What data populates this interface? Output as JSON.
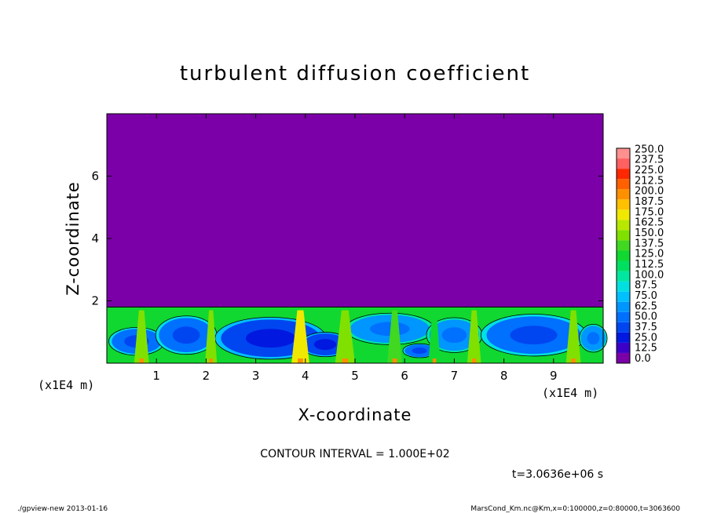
{
  "chart_data": {
    "type": "heatmap",
    "title": "turbulent diffusion coefficient",
    "xlabel": "X-coordinate",
    "ylabel": "Z-coordinate",
    "x_unit": "(x1E4 m)",
    "y_unit": "(x1E4 m)",
    "xlim": [
      0,
      10
    ],
    "ylim": [
      0,
      8
    ],
    "x_ticks": [
      "1",
      "2",
      "3",
      "4",
      "5",
      "6",
      "7",
      "8",
      "9"
    ],
    "y_ticks": [
      "2",
      "4",
      "6"
    ],
    "colorbar": {
      "levels": [
        "0.0",
        "12.5",
        "25.0",
        "37.5",
        "50.0",
        "62.5",
        "75.0",
        "87.5",
        "100.0",
        "112.5",
        "125.0",
        "137.5",
        "150.0",
        "162.5",
        "175.0",
        "187.5",
        "200.0",
        "212.5",
        "225.0",
        "237.5",
        "250.0"
      ],
      "colors": [
        "#7b00a8",
        "#3c00c8",
        "#0018e0",
        "#0046f0",
        "#0070ff",
        "#0096ff",
        "#00c0ff",
        "#00e0e0",
        "#00e8a0",
        "#00e060",
        "#10d830",
        "#40d820",
        "#80e000",
        "#b8e800",
        "#f0e800",
        "#ffc000",
        "#ff9000",
        "#ff6000",
        "#ff2800",
        "#ff6060",
        "#ff9090"
      ]
    },
    "field": {
      "background_value": 0.0,
      "boundary_layer_top": 1.8,
      "cells": [
        {
          "x": 0.6,
          "z": 0.7,
          "rx": 0.5,
          "rz": 0.4,
          "level": 4
        },
        {
          "x": 1.6,
          "z": 0.9,
          "rx": 0.55,
          "rz": 0.55,
          "level": 4
        },
        {
          "x": 3.3,
          "z": 0.8,
          "rx": 1.0,
          "rz": 0.6,
          "level": 3
        },
        {
          "x": 4.4,
          "z": 0.6,
          "rx": 0.45,
          "rz": 0.35,
          "level": 3
        },
        {
          "x": 5.7,
          "z": 1.1,
          "rx": 0.8,
          "rz": 0.45,
          "level": 5
        },
        {
          "x": 6.3,
          "z": 0.4,
          "rx": 0.3,
          "rz": 0.2,
          "level": 4
        },
        {
          "x": 7.0,
          "z": 0.9,
          "rx": 0.5,
          "rz": 0.5,
          "level": 5
        },
        {
          "x": 8.6,
          "z": 0.9,
          "rx": 0.95,
          "rz": 0.6,
          "level": 4
        },
        {
          "x": 9.8,
          "z": 0.8,
          "rx": 0.25,
          "rz": 0.4,
          "level": 5
        }
      ],
      "plumes": [
        {
          "x": 0.7,
          "w": 0.15,
          "level": 12
        },
        {
          "x": 2.1,
          "w": 0.12,
          "level": 12
        },
        {
          "x": 3.9,
          "w": 0.18,
          "level": 14
        },
        {
          "x": 4.8,
          "w": 0.2,
          "level": 12
        },
        {
          "x": 5.8,
          "w": 0.15,
          "level": 11
        },
        {
          "x": 6.6,
          "w": 0.12,
          "level": 10
        },
        {
          "x": 7.4,
          "w": 0.14,
          "level": 12
        },
        {
          "x": 9.4,
          "w": 0.15,
          "level": 12
        }
      ]
    }
  },
  "annotations": {
    "contour_interval": "CONTOUR INTERVAL = 1.000E+02",
    "time": "t=3.0636e+06 s",
    "footer_left": "./gpview-new  2013-01-16",
    "footer_right": "MarsCond_Km.nc@Km,x=0:100000,z=0:80000,t=3063600"
  }
}
